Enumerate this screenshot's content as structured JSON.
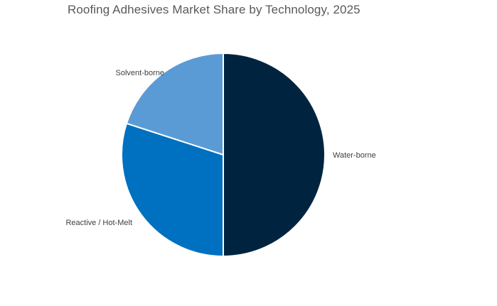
{
  "chart_data": {
    "type": "pie",
    "title": "Roofing Adhesives Market Share by Technology, 2025",
    "categories": [
      "Water-borne",
      "Reactive / Hot-Melt",
      "Solvent-borne"
    ],
    "values": [
      50,
      30,
      20
    ],
    "unit": "%",
    "colors": [
      "#002440",
      "#0070C0",
      "#5B9BD5"
    ],
    "start_angle_deg": 0,
    "direction": "clockwise",
    "slice_border_color": "#ffffff",
    "legend": "none",
    "labels_outside": true
  }
}
